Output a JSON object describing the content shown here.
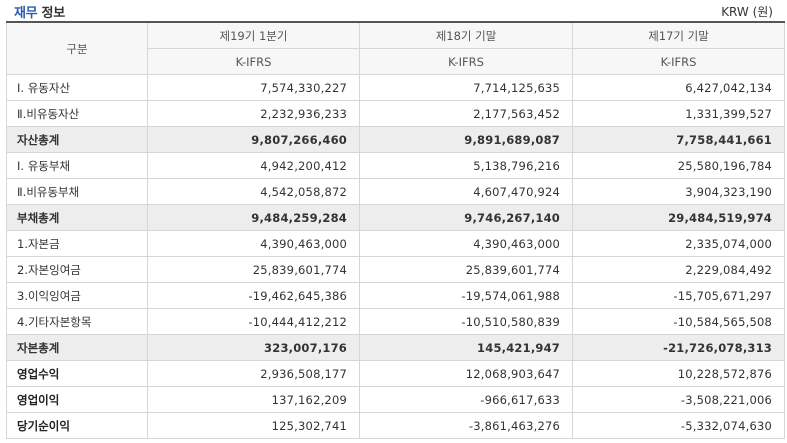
{
  "header": {
    "title_accent": "재무",
    "title_rest": " 정보",
    "unit": "KRW (원)"
  },
  "table": {
    "corner_label": "구분",
    "periods": [
      "제19기 1분기",
      "제18기 기말",
      "제17기 기말"
    ],
    "standards": [
      "K-IFRS",
      "K-IFRS",
      "K-IFRS"
    ],
    "rows": [
      {
        "label": "Ⅰ. 유동자산",
        "values": [
          "7,574,330,227",
          "7,714,125,635",
          "6,427,042,134"
        ],
        "style": "normal"
      },
      {
        "label": "Ⅱ.비유동자산",
        "values": [
          "2,232,936,233",
          "2,177,563,452",
          "1,331,399,527"
        ],
        "style": "normal"
      },
      {
        "label": "자산총계",
        "values": [
          "9,807,266,460",
          "9,891,689,087",
          "7,758,441,661"
        ],
        "style": "total"
      },
      {
        "label": "Ⅰ. 유동부채",
        "values": [
          "4,942,200,412",
          "5,138,796,216",
          "25,580,196,784"
        ],
        "style": "normal"
      },
      {
        "label": "Ⅱ.비유동부채",
        "values": [
          "4,542,058,872",
          "4,607,470,924",
          "3,904,323,190"
        ],
        "style": "normal"
      },
      {
        "label": "부채총계",
        "values": [
          "9,484,259,284",
          "9,746,267,140",
          "29,484,519,974"
        ],
        "style": "total"
      },
      {
        "label": "1.자본금",
        "values": [
          "4,390,463,000",
          "4,390,463,000",
          "2,335,074,000"
        ],
        "style": "normal"
      },
      {
        "label": "2.자본잉여금",
        "values": [
          "25,839,601,774",
          "25,839,601,774",
          "2,229,084,492"
        ],
        "style": "normal"
      },
      {
        "label": "3.이익잉여금",
        "values": [
          "-19,462,645,386",
          "-19,574,061,988",
          "-15,705,671,297"
        ],
        "style": "normal"
      },
      {
        "label": "4.기타자본항목",
        "values": [
          "-10,444,412,212",
          "-10,510,580,839",
          "-10,584,565,508"
        ],
        "style": "normal"
      },
      {
        "label": "자본총계",
        "values": [
          "323,007,176",
          "145,421,947",
          "-21,726,078,313"
        ],
        "style": "total"
      },
      {
        "label": "영업수익",
        "values": [
          "2,936,508,177",
          "12,068,903,647",
          "10,228,572,876"
        ],
        "style": "bold-label"
      },
      {
        "label": "영업이익",
        "values": [
          "137,162,209",
          "-966,617,633",
          "-3,508,221,006"
        ],
        "style": "bold-label"
      },
      {
        "label": "당기순이익",
        "values": [
          "125,302,741",
          "-3,861,463,276",
          "-5,332,074,630"
        ],
        "style": "bold-label"
      }
    ]
  }
}
